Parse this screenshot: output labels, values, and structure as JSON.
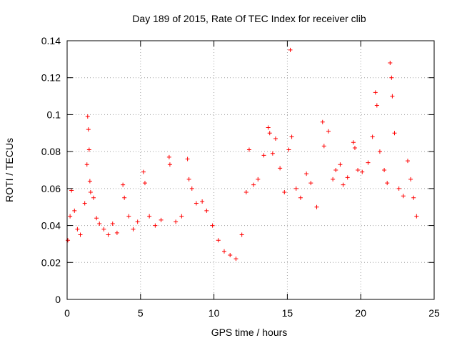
{
  "chart_data": {
    "type": "scatter",
    "title": "Day 189 of 2015, Rate Of TEC Index for receiver clib",
    "xlabel": "GPS time / hours",
    "ylabel": "ROTI / TECUs",
    "xlim": [
      0,
      25
    ],
    "ylim": [
      0,
      0.14
    ],
    "xticks": [
      0,
      5,
      10,
      15,
      20,
      25
    ],
    "xtick_labels": [
      "0",
      "5",
      "10",
      "15",
      "20",
      "25"
    ],
    "yticks": [
      0,
      0.02,
      0.04,
      0.06,
      0.08,
      0.1,
      0.12,
      0.14
    ],
    "ytick_labels": [
      "0",
      "0.02",
      "0.04",
      "0.06",
      "0.08",
      "0.1",
      "0.12",
      "0.14"
    ],
    "grid": true,
    "marker": "+",
    "color": "#ff0000",
    "data_x_range": [
      0,
      23.8
    ],
    "series": [
      {
        "name": "ROTI",
        "x": [
          0.05,
          0.2,
          0.3,
          0.5,
          0.7,
          0.9,
          1.2,
          1.35,
          1.4,
          1.45,
          1.5,
          1.55,
          1.6,
          1.8,
          2.0,
          2.2,
          2.5,
          2.8,
          3.1,
          3.4,
          3.8,
          3.9,
          4.2,
          4.5,
          4.8,
          5.2,
          5.3,
          5.6,
          6.0,
          6.4,
          6.95,
          7.0,
          7.4,
          7.8,
          8.2,
          8.3,
          8.5,
          8.8,
          9.2,
          9.5,
          9.9,
          10.3,
          10.7,
          11.1,
          11.5,
          11.9,
          12.2,
          12.4,
          12.7,
          13.0,
          13.4,
          13.7,
          13.8,
          14.0,
          14.2,
          14.5,
          14.8,
          15.1,
          15.2,
          15.3,
          15.6,
          15.9,
          16.3,
          16.6,
          17.0,
          17.4,
          17.5,
          17.8,
          18.1,
          18.3,
          18.6,
          18.8,
          19.1,
          19.5,
          19.6,
          19.8,
          20.1,
          20.5,
          20.8,
          21.0,
          21.1,
          21.3,
          21.6,
          21.8,
          22.0,
          22.1,
          22.15,
          22.3,
          22.6,
          22.9,
          23.2,
          23.4,
          23.6,
          23.8
        ],
        "y": [
          0.032,
          0.045,
          0.059,
          0.048,
          0.038,
          0.035,
          0.052,
          0.073,
          0.099,
          0.092,
          0.081,
          0.064,
          0.058,
          0.055,
          0.044,
          0.041,
          0.038,
          0.035,
          0.041,
          0.036,
          0.062,
          0.055,
          0.045,
          0.038,
          0.042,
          0.069,
          0.063,
          0.045,
          0.04,
          0.043,
          0.077,
          0.073,
          0.042,
          0.045,
          0.076,
          0.065,
          0.06,
          0.052,
          0.053,
          0.048,
          0.04,
          0.032,
          0.026,
          0.024,
          0.022,
          0.035,
          0.058,
          0.081,
          0.062,
          0.065,
          0.078,
          0.093,
          0.09,
          0.079,
          0.087,
          0.071,
          0.058,
          0.081,
          0.135,
          0.088,
          0.06,
          0.055,
          0.068,
          0.063,
          0.05,
          0.096,
          0.083,
          0.091,
          0.065,
          0.07,
          0.073,
          0.062,
          0.066,
          0.085,
          0.082,
          0.07,
          0.069,
          0.074,
          0.088,
          0.112,
          0.105,
          0.08,
          0.07,
          0.063,
          0.128,
          0.12,
          0.11,
          0.09,
          0.06,
          0.056,
          0.075,
          0.065,
          0.055,
          0.045
        ]
      }
    ]
  }
}
